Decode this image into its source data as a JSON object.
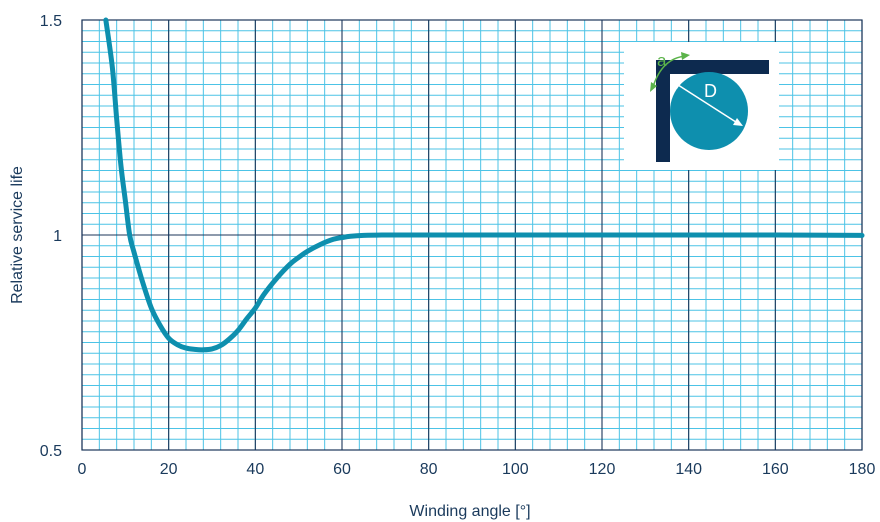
{
  "chart_data": {
    "type": "line",
    "title": "",
    "xlabel": "Winding angle [°]",
    "ylabel": "Relative service life",
    "xlim": [
      0,
      180
    ],
    "ylim": [
      0.5,
      1.5
    ],
    "x_ticks": [
      0,
      20,
      40,
      60,
      80,
      100,
      120,
      140,
      160,
      180
    ],
    "x_tick_labels": [
      "0",
      "20",
      "40",
      "60",
      "80",
      "100",
      "120",
      "140",
      "160",
      "180"
    ],
    "y_ticks": [
      0.5,
      1,
      1.5
    ],
    "y_tick_labels": [
      "0.5",
      "1",
      "1.5"
    ],
    "grid": true,
    "legend": "none",
    "series": [
      {
        "color": "#0e8fae",
        "x": [
          5.5,
          7,
          8,
          9,
          10,
          11,
          12,
          14,
          16,
          18,
          20,
          22,
          24,
          26,
          28,
          30,
          32,
          34,
          36,
          38,
          40,
          42,
          45,
          48,
          50,
          52,
          55,
          58,
          60,
          62,
          65,
          70,
          80,
          100,
          120,
          140,
          160,
          180
        ],
        "y": [
          1.5,
          1.39,
          1.27,
          1.16,
          1.08,
          1.0,
          0.96,
          0.89,
          0.83,
          0.79,
          0.76,
          0.745,
          0.737,
          0.734,
          0.733,
          0.735,
          0.743,
          0.758,
          0.778,
          0.805,
          0.83,
          0.862,
          0.9,
          0.932,
          0.948,
          0.962,
          0.978,
          0.99,
          0.994,
          0.997,
          0.999,
          1.0,
          1.0,
          1.0,
          1.0,
          1.0,
          1.0,
          0.999
        ]
      }
    ],
    "inset": {
      "labels": [
        "a",
        "D"
      ],
      "colors": {
        "circle": "#0e8fae",
        "frame": "#0d2a4f",
        "arc": "#5bb34a",
        "diameter": "#ffffff"
      }
    }
  },
  "colors": {
    "minor_grid": "#4cc3e6",
    "major_grid": "#1b3559",
    "text": "#1a3a5c"
  }
}
